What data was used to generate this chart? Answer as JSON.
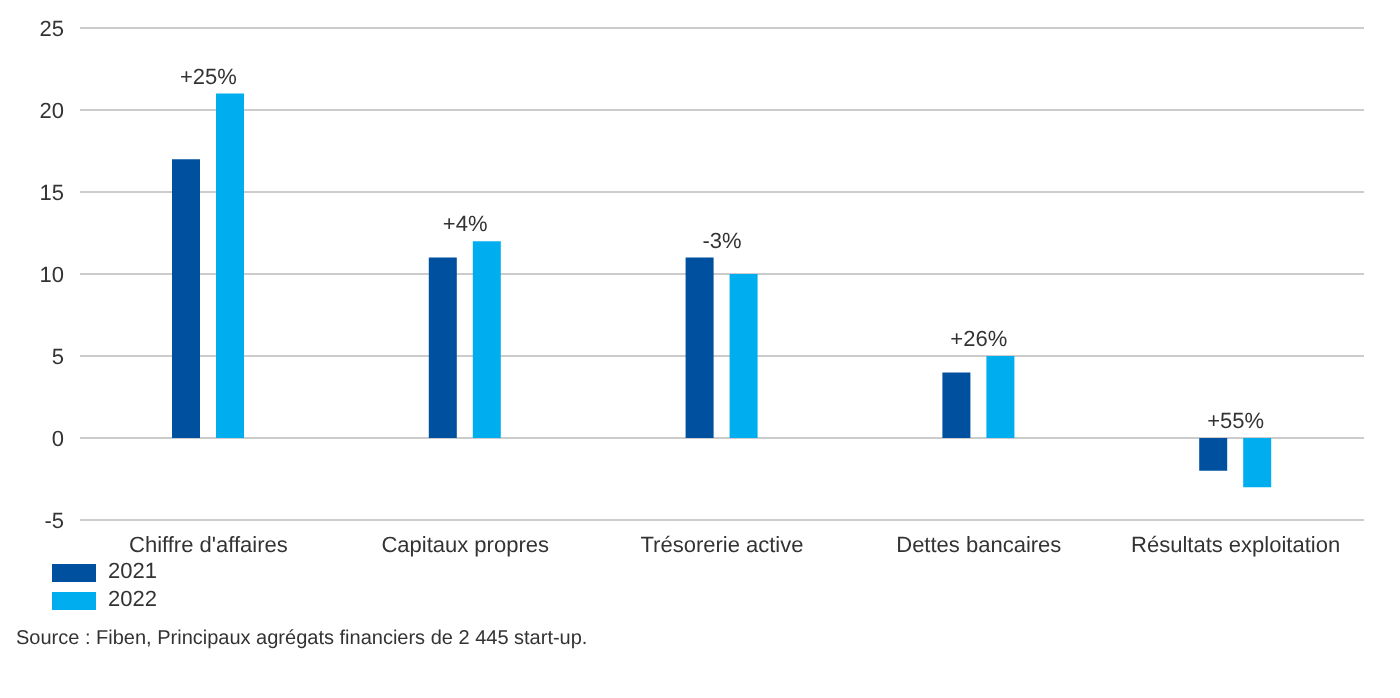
{
  "chart_data": {
    "type": "bar",
    "categories": [
      "Chiffre d'affaires",
      "Capitaux propres",
      "Trésorerie active",
      "Dettes bancaires",
      "Résultats exploitation"
    ],
    "series": [
      {
        "name": "2021",
        "color": "#0050a0",
        "values": [
          17,
          11,
          11,
          4,
          -2
        ]
      },
      {
        "name": "2022",
        "color": "#00aeef",
        "values": [
          21,
          12,
          10,
          5,
          -3
        ]
      }
    ],
    "ylim": [
      -5,
      25
    ],
    "yticks": [
      -5,
      0,
      5,
      10,
      15,
      20,
      25
    ],
    "grid": "y",
    "legend": "bottom left",
    "annotations": [
      {
        "text": "+25%",
        "x": "Chiffre d'affaires",
        "y": 21
      },
      {
        "text": "+4%",
        "x": "Capitaux propres",
        "y": 12
      },
      {
        "text": "-3%",
        "x": "Trésorerie active",
        "y": 11
      },
      {
        "text": "+26%",
        "x": "Dettes bancaires",
        "y": 5
      },
      {
        "text": "+55%",
        "x": "Résultats exploitation",
        "y": 0
      },
      "Source : Fiben, Principaux agrégats financiers de 2 445 start-up."
    ]
  }
}
